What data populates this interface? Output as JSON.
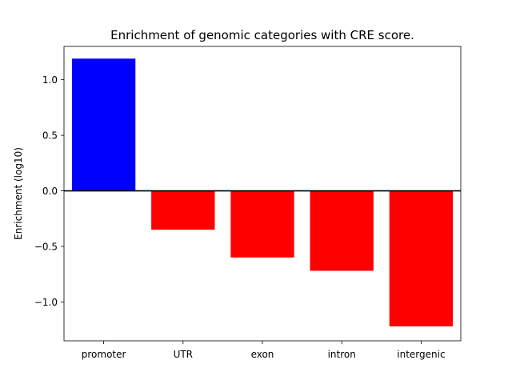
{
  "chart_data": {
    "type": "bar",
    "title": "Enrichment of genomic categories with CRE score.",
    "xlabel": "",
    "ylabel": "Enrichment (log10)",
    "categories": [
      "promoter",
      "UTR",
      "exon",
      "intron",
      "intergenic"
    ],
    "values": [
      1.19,
      -0.35,
      -0.6,
      -0.72,
      -1.22
    ],
    "colors": [
      "#0000ff",
      "#ff0000",
      "#ff0000",
      "#ff0000",
      "#ff0000"
    ],
    "ylim": [
      -1.35,
      1.3
    ],
    "yticks": [
      1.0,
      0.5,
      0.0,
      -0.5,
      -1.0
    ],
    "ytick_labels": [
      "1.0",
      "0.5",
      "0.0",
      "−0.5",
      "−1.0"
    ],
    "zero_line": true,
    "grid": false
  }
}
